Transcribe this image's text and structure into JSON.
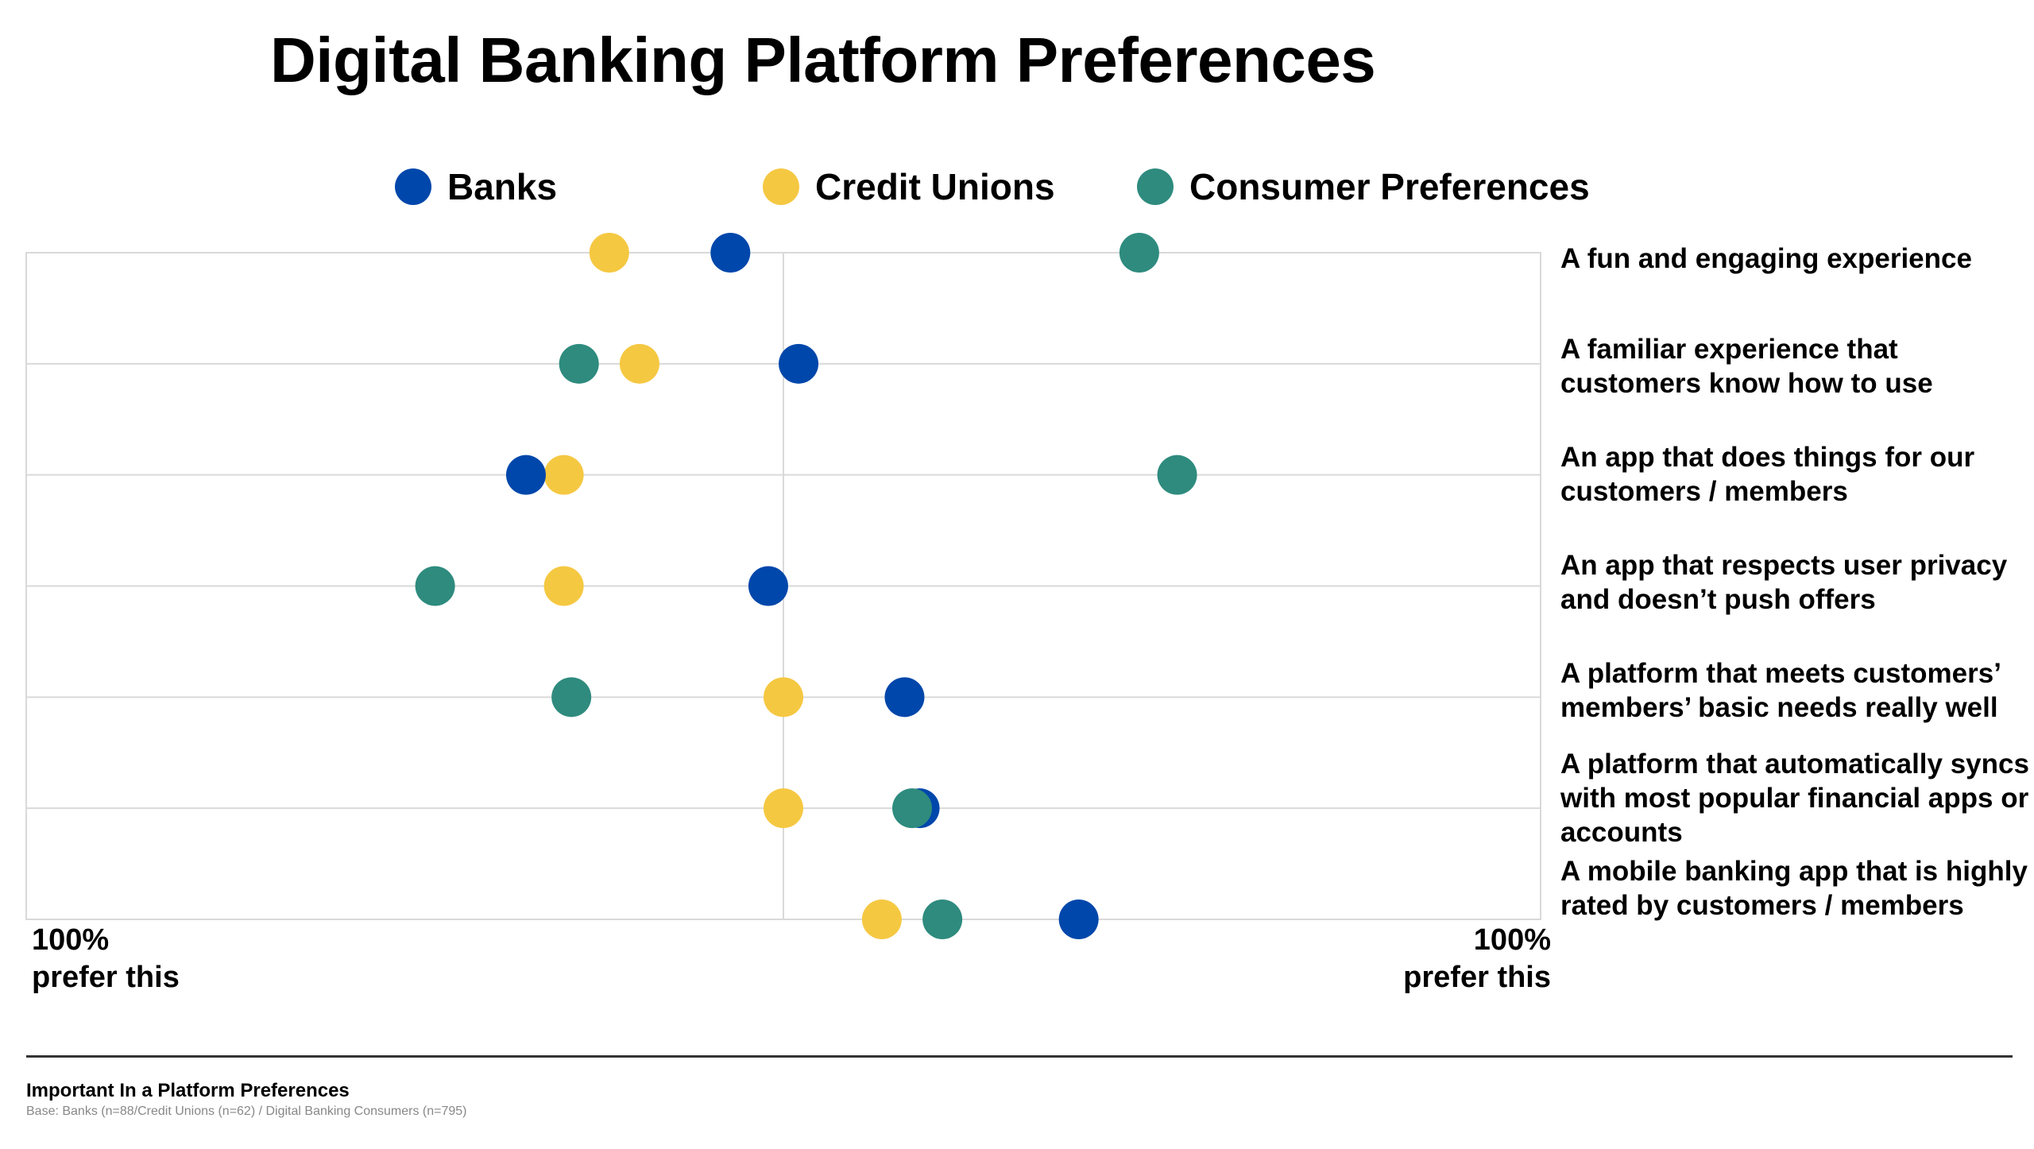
{
  "title": "Digital Banking Platform Preferences",
  "legend": [
    {
      "name": "Banks",
      "color": "#0047AB"
    },
    {
      "name": "Credit Unions",
      "color": "#F5C842"
    },
    {
      "name": "Consumer Preferences",
      "color": "#2E8B7E"
    }
  ],
  "axis": {
    "left_label": "100%\nprefer this",
    "right_label": "100%\nprefer this"
  },
  "chart_data": {
    "type": "scatter",
    "title": "Digital Banking Platform Preferences",
    "x_range": [
      -100,
      100
    ],
    "x_description": "left end: 100% prefer this; right end: 100% prefer this; center: 0",
    "grid": true,
    "legend_position": "top",
    "categories": [
      "A fun and engaging experience",
      "A familiar experience that customers know how to use",
      "An app that does things for our customers / members",
      "An app that respects user privacy and doesn’t push offers",
      "A platform that meets customers’ members’ basic needs really well",
      "A platform that automatically syncs with most popular financial apps or accounts",
      "A mobile banking app that is highly rated by customers / members"
    ],
    "series": [
      {
        "name": "Banks",
        "color": "#0047AB",
        "values": [
          -7,
          2,
          -34,
          -2,
          16,
          18,
          39
        ]
      },
      {
        "name": "Credit Unions",
        "color": "#F5C842",
        "values": [
          -23,
          -19,
          -29,
          -29,
          0,
          0,
          13
        ]
      },
      {
        "name": "Consumer Preferences",
        "color": "#2E8B7E",
        "values": [
          47,
          -27,
          52,
          -46,
          -28,
          17,
          21
        ]
      }
    ]
  },
  "row_labels": [
    "A fun and engaging experience",
    "A familiar experience that customers know how to use",
    "An app that does things for our customers / members",
    "An app that respects user privacy and doesn’t push offers",
    "A platform that meets customers’ members’ basic needs really well",
    "A platform that automatically syncs with most popular financial apps or accounts",
    "A mobile banking app that is highly rated by customers / members"
  ],
  "footer": {
    "title": "Important In a Platform Preferences",
    "base": "Base: Banks (n=88/Credit Unions (n=62) / Digital Banking Consumers (n=795)"
  }
}
